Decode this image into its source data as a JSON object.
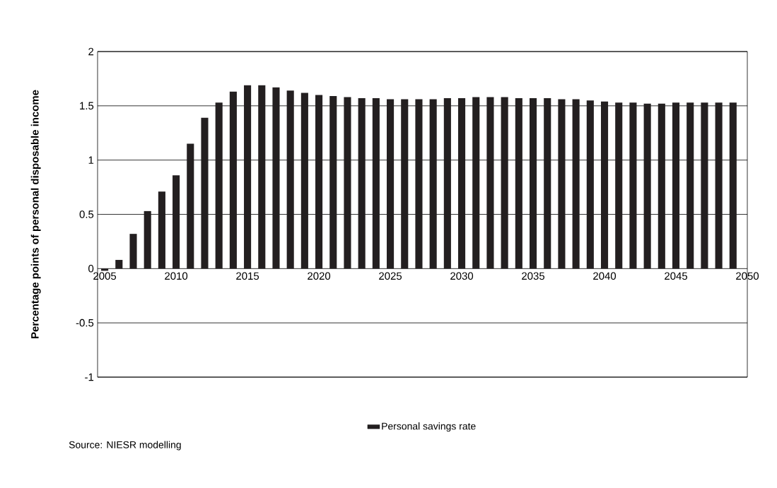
{
  "chart_data": {
    "type": "bar",
    "ylabel": "Percentage points of personal disposable income",
    "x": [
      2005,
      2006,
      2007,
      2008,
      2009,
      2010,
      2011,
      2012,
      2013,
      2014,
      2015,
      2016,
      2017,
      2018,
      2019,
      2020,
      2021,
      2022,
      2023,
      2024,
      2025,
      2026,
      2027,
      2028,
      2029,
      2030,
      2031,
      2032,
      2033,
      2034,
      2035,
      2036,
      2037,
      2038,
      2039,
      2040,
      2041,
      2042,
      2043,
      2044,
      2045,
      2046,
      2047,
      2048,
      2049
    ],
    "series": [
      {
        "name": "Personal savings rate",
        "color": "#231f20",
        "values": [
          -0.02,
          0.08,
          0.32,
          0.53,
          0.71,
          0.86,
          1.15,
          1.39,
          1.53,
          1.63,
          1.69,
          1.69,
          1.67,
          1.64,
          1.62,
          1.6,
          1.59,
          1.58,
          1.57,
          1.57,
          1.56,
          1.56,
          1.56,
          1.56,
          1.57,
          1.57,
          1.58,
          1.58,
          1.58,
          1.57,
          1.57,
          1.57,
          1.56,
          1.56,
          1.55,
          1.54,
          1.53,
          1.53,
          1.52,
          1.52,
          1.53,
          1.53,
          1.53,
          1.53,
          1.53
        ]
      }
    ],
    "xlim": [
      2004.5,
      2050
    ],
    "xticks": [
      2005,
      2010,
      2015,
      2020,
      2025,
      2030,
      2035,
      2040,
      2045,
      2050
    ],
    "ylim": [
      -1,
      2
    ],
    "yticks": [
      -1,
      -0.5,
      0,
      0.5,
      1,
      1.5,
      2
    ],
    "grid": "y",
    "legend": "bottom",
    "annotations": [
      "Source: NIESR modelling"
    ]
  }
}
